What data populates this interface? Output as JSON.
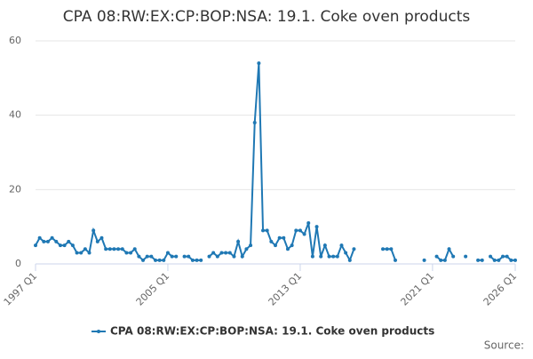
{
  "chart_data": {
    "type": "line",
    "title": "CPA 08:RW:EX:CP:BOP:NSA: 19.1. Coke oven products",
    "source": "Source:",
    "categories": [
      "1997 Q1",
      null,
      null,
      null,
      null,
      null,
      null,
      null,
      null,
      null,
      null,
      null,
      null,
      null,
      null,
      null,
      null,
      null,
      null,
      null,
      null,
      null,
      null,
      null,
      null,
      null,
      null,
      null,
      null,
      null,
      null,
      null,
      "2005 Q1",
      null,
      null,
      null,
      null,
      null,
      null,
      null,
      null,
      null,
      null,
      null,
      null,
      null,
      null,
      null,
      null,
      null,
      null,
      null,
      null,
      null,
      null,
      null,
      null,
      null,
      null,
      null,
      null,
      null,
      null,
      null,
      "2013 Q1",
      null,
      null,
      null,
      null,
      null,
      null,
      null,
      null,
      null,
      null,
      null,
      null,
      null,
      null,
      null,
      null,
      null,
      null,
      null,
      null,
      null,
      null,
      null,
      null,
      null,
      null,
      null,
      null,
      null,
      null,
      null,
      "2021 Q1",
      null,
      null,
      null,
      null,
      null,
      null,
      null,
      null,
      null,
      null,
      null,
      null,
      null,
      null,
      null,
      null,
      null,
      null,
      null,
      "2026 Q1"
    ],
    "series": [
      {
        "name": "CPA 08:RW:EX:CP:BOP:NSA: 19.1. Coke oven products",
        "color": "#1f78b4",
        "values": [
          5,
          7,
          6,
          6,
          7,
          6,
          5,
          5,
          6,
          5,
          3,
          3,
          4,
          3,
          9,
          6,
          7,
          4,
          4,
          4,
          4,
          4,
          3,
          3,
          4,
          2,
          1,
          2,
          2,
          1,
          1,
          1,
          3,
          2,
          2,
          null,
          2,
          2,
          1,
          1,
          1,
          null,
          2,
          3,
          2,
          3,
          3,
          3,
          2,
          6,
          2,
          4,
          5,
          38,
          54,
          9,
          9,
          6,
          5,
          7,
          7,
          4,
          5,
          9,
          9,
          8,
          11,
          2,
          10,
          2,
          5,
          2,
          2,
          2,
          5,
          3,
          1,
          4,
          null,
          null,
          null,
          null,
          null,
          null,
          4,
          4,
          4,
          1,
          null,
          null,
          null,
          null,
          null,
          null,
          1,
          null,
          null,
          2,
          1,
          1,
          4,
          2,
          null,
          null,
          2,
          null,
          null,
          1,
          1,
          null,
          2,
          1,
          1,
          2,
          2,
          1,
          1
        ]
      }
    ],
    "ylim": [
      0,
      60
    ],
    "yticks": [
      0,
      20,
      40,
      60
    ],
    "grid": true
  }
}
